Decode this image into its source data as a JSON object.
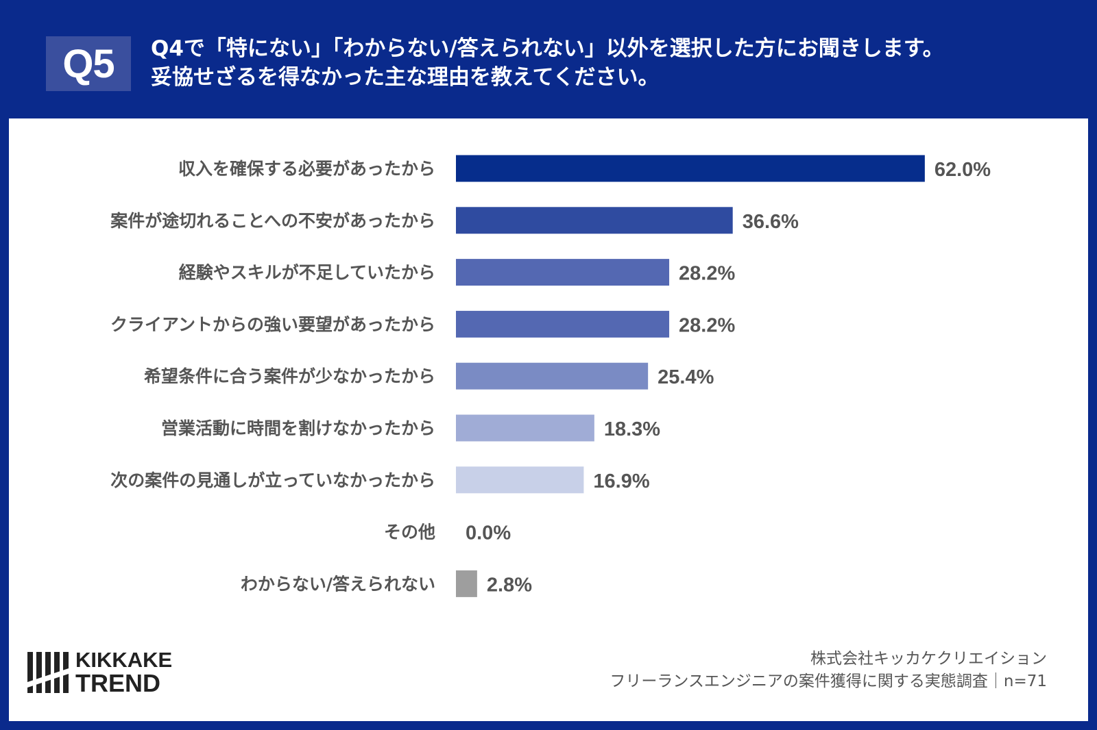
{
  "header": {
    "badge": "Q5",
    "title_line1": "Q4で「特にない」「わからない/答えられない」以外を選択した方にお聞きします。",
    "title_line2": "妥協せざるを得なかった主な理由を教えてください。"
  },
  "chart_data": {
    "type": "bar",
    "orientation": "horizontal",
    "categories": [
      "収入を確保する必要があったから",
      "案件が途切れることへの不安があったから",
      "経験やスキルが不足していたから",
      "クライアントからの強い要望があったから",
      "希望条件に合う案件が少なかったから",
      "営業活動に時間を割けなかったから",
      "次の案件の見通しが立っていなかったから",
      "その他",
      "わからない/答えられない"
    ],
    "values": [
      62.0,
      36.6,
      28.2,
      28.2,
      25.4,
      18.3,
      16.9,
      0.0,
      2.8
    ],
    "value_labels": [
      "62.0%",
      "36.6%",
      "28.2%",
      "28.2%",
      "25.4%",
      "18.3%",
      "16.9%",
      "0.0%",
      "2.8%"
    ],
    "bar_colors": [
      "#062d8c",
      "#2f4ba0",
      "#5468b2",
      "#5468b2",
      "#7a8bc4",
      "#a0acd6",
      "#c8d0e8",
      "#c8d0e8",
      "#9e9e9e"
    ],
    "xlim": [
      0,
      100
    ],
    "grid": false,
    "legend": "none"
  },
  "footer": {
    "logo_line1": "KIKKAKE",
    "logo_line2": "TREND",
    "credit_line1": "株式会社キッカケクリエイション",
    "credit_line2": "フリーランスエンジニアの案件獲得に関する実態調査｜n=71"
  },
  "colors": {
    "background": "#0a2a8c",
    "panel": "#ffffff",
    "badge": "#3a4f9e",
    "label_text": "#555555"
  }
}
